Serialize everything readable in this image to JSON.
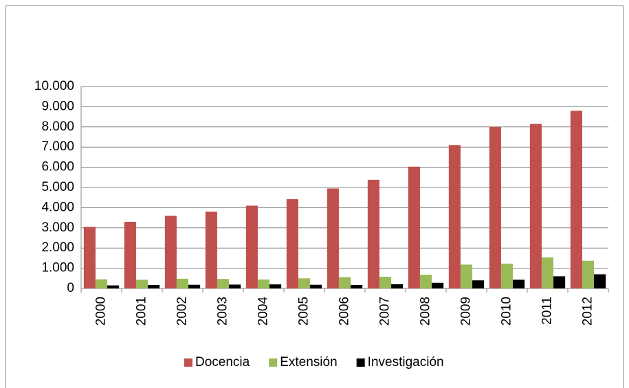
{
  "chart_data": {
    "type": "bar",
    "categories": [
      "2000",
      "2001",
      "2002",
      "2003",
      "2004",
      "2005",
      "2006",
      "2007",
      "2008",
      "2009",
      "2010",
      "2011",
      "2012"
    ],
    "series": [
      {
        "name": "Docencia",
        "color": "#c0504d",
        "values": [
          3050,
          3300,
          3600,
          3800,
          4100,
          4420,
          4950,
          5380,
          6030,
          7100,
          8000,
          8150,
          8800
        ]
      },
      {
        "name": "Extensión",
        "color": "#9bbb59",
        "values": [
          450,
          430,
          480,
          470,
          440,
          500,
          560,
          580,
          680,
          1180,
          1230,
          1540,
          1370
        ]
      },
      {
        "name": "Investigación",
        "color": "#000000",
        "values": [
          150,
          170,
          180,
          190,
          200,
          180,
          170,
          210,
          280,
          400,
          430,
          600,
          700
        ]
      }
    ],
    "ylim": [
      0,
      10000
    ],
    "yticks": [
      0,
      {
        "value": 1000,
        "label": "1.000"
      },
      {
        "value": 2000,
        "label": "2.000"
      },
      {
        "value": 3000,
        "label": "3.000"
      },
      {
        "value": 4000,
        "label": "4.000"
      },
      {
        "value": 5000,
        "label": "5.000"
      },
      {
        "value": 6000,
        "label": "6.000"
      },
      {
        "value": 7000,
        "label": "7.000"
      },
      {
        "value": 8000,
        "label": "8.000"
      },
      {
        "value": 9000,
        "label": "9.000"
      },
      {
        "value": 10000,
        "label": "10.000"
      }
    ],
    "grid": true,
    "legend": "bottom"
  }
}
